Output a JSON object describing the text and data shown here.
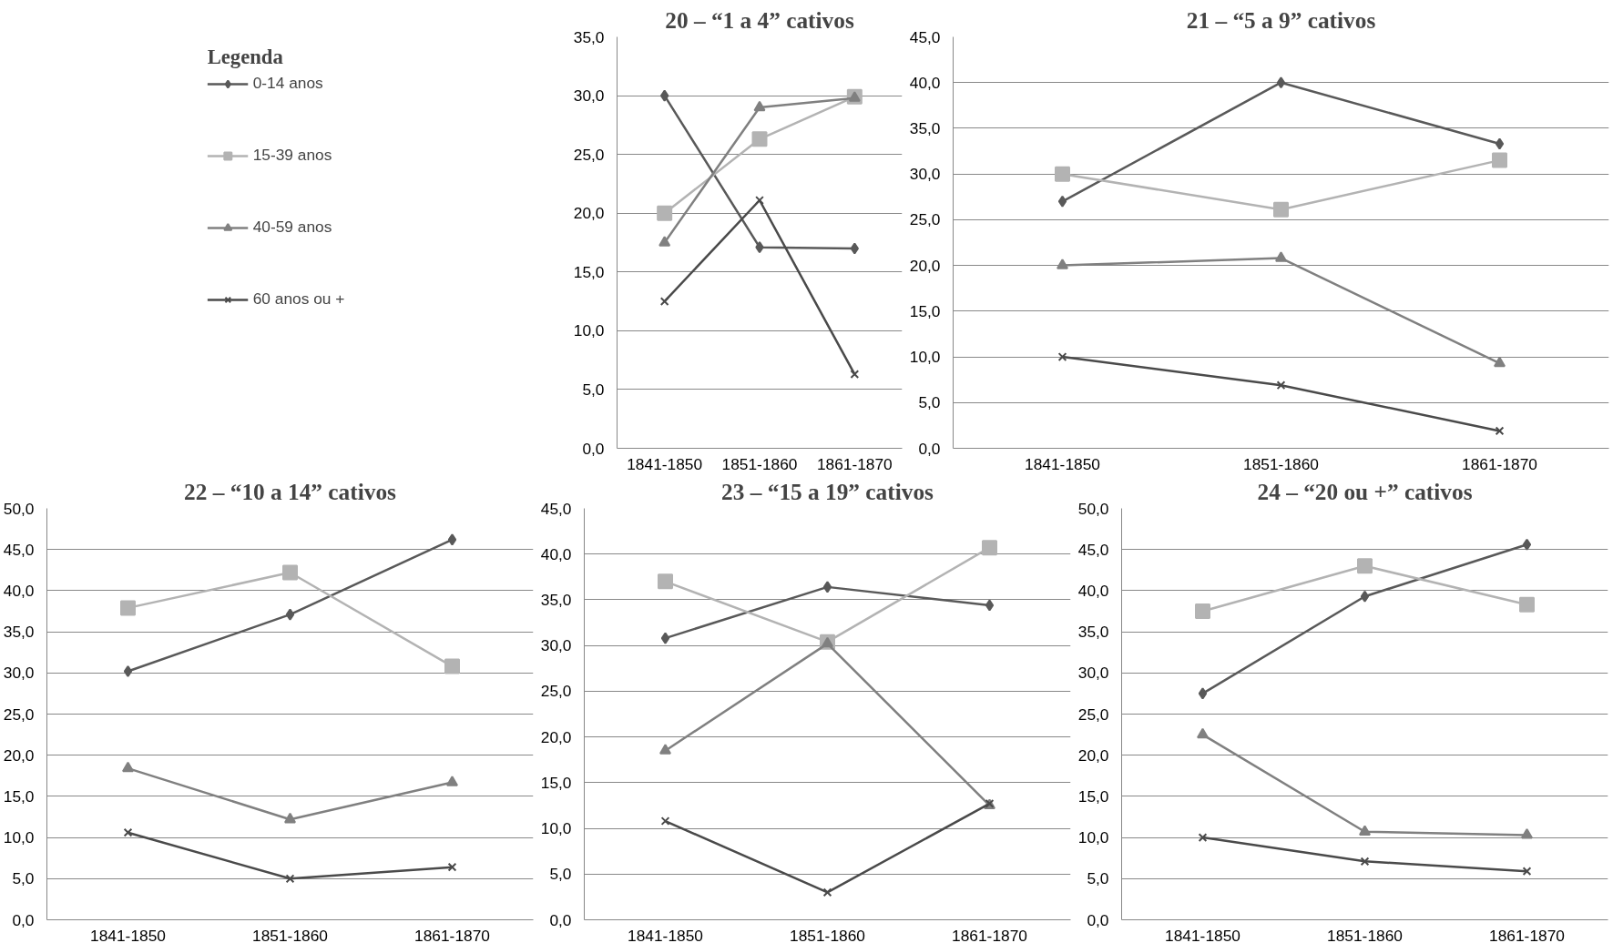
{
  "chart_data": [
    {
      "type": "line",
      "title": "20 – “1 a 4” cativos",
      "categories": [
        "1841-1850",
        "1851-1860",
        "1861-1870"
      ],
      "ylim": [
        0,
        35
      ],
      "yticks": [
        {
          "value": 0,
          "label": "0,0"
        },
        {
          "value": 5,
          "label": "5,0"
        },
        {
          "value": 10,
          "label": "10,0"
        },
        {
          "value": 15,
          "label": "15,0"
        },
        {
          "value": 20,
          "label": "20,0"
        },
        {
          "value": 25,
          "label": "25,0"
        },
        {
          "value": 30,
          "label": "30,0"
        },
        {
          "value": 35,
          "label": "35,0"
        }
      ],
      "grid": "y",
      "legend": "left",
      "legend_title": "Legenda",
      "series": [
        {
          "name": "0-14 anos",
          "color": "#595959",
          "marker": "diamond",
          "values": [
            30.0,
            17.1,
            17.0
          ]
        },
        {
          "name": "15-39 anos",
          "color": "#b3b3b3",
          "marker": "square",
          "values": [
            20.0,
            26.3,
            29.9
          ]
        },
        {
          "name": "40-59 anos",
          "color": "#808080",
          "marker": "triangle",
          "values": [
            17.5,
            29.0,
            29.8
          ]
        },
        {
          "name": "60 anos ou +",
          "color": "#4a4a4a",
          "marker": "cross",
          "values": [
            12.5,
            21.1,
            6.3
          ]
        }
      ]
    },
    {
      "type": "line",
      "title": "21 – “5 a 9” cativos",
      "categories": [
        "1841-1850",
        "1851-1860",
        "1861-1870"
      ],
      "ylim": [
        0,
        45
      ],
      "yticks": [
        {
          "value": 0,
          "label": "0,0"
        },
        {
          "value": 5,
          "label": "5,0"
        },
        {
          "value": 10,
          "label": "10,0"
        },
        {
          "value": 15,
          "label": "15,0"
        },
        {
          "value": 20,
          "label": "20,0"
        },
        {
          "value": 25,
          "label": "25,0"
        },
        {
          "value": 30,
          "label": "30,0"
        },
        {
          "value": 35,
          "label": "35,0"
        },
        {
          "value": 40,
          "label": "40,0"
        },
        {
          "value": 45,
          "label": "45,0"
        }
      ],
      "grid": "y",
      "series": [
        {
          "color": "#595959",
          "marker": "diamond",
          "values": [
            27.0,
            40.0,
            33.3
          ]
        },
        {
          "color": "#b3b3b3",
          "marker": "square",
          "values": [
            30.0,
            26.1,
            31.5
          ]
        },
        {
          "color": "#808080",
          "marker": "triangle",
          "values": [
            20.0,
            20.8,
            9.3
          ]
        },
        {
          "color": "#4a4a4a",
          "marker": "cross",
          "values": [
            10.0,
            6.9,
            1.9
          ]
        }
      ]
    },
    {
      "type": "line",
      "title": "22 – “10 a 14” cativos",
      "categories": [
        "1841-1850",
        "1851-1860",
        "1861-1870"
      ],
      "ylim": [
        0,
        50
      ],
      "yticks": [
        {
          "value": 0,
          "label": "0,0"
        },
        {
          "value": 5,
          "label": "5,0"
        },
        {
          "value": 10,
          "label": "10,0"
        },
        {
          "value": 15,
          "label": "15,0"
        },
        {
          "value": 20,
          "label": "20,0"
        },
        {
          "value": 25,
          "label": "25,0"
        },
        {
          "value": 30,
          "label": "30,0"
        },
        {
          "value": 35,
          "label": "35,0"
        },
        {
          "value": 40,
          "label": "40,0"
        },
        {
          "value": 45,
          "label": "45,0"
        },
        {
          "value": 50,
          "label": "50,0"
        }
      ],
      "grid": "y",
      "series": [
        {
          "color": "#595959",
          "marker": "diamond",
          "values": [
            30.2,
            37.1,
            46.2
          ]
        },
        {
          "color": "#b3b3b3",
          "marker": "square",
          "values": [
            37.9,
            42.2,
            30.8
          ]
        },
        {
          "color": "#808080",
          "marker": "triangle",
          "values": [
            18.4,
            12.2,
            16.7
          ]
        },
        {
          "color": "#4a4a4a",
          "marker": "cross",
          "values": [
            10.6,
            5.0,
            6.4
          ]
        }
      ]
    },
    {
      "type": "line",
      "title": "23 – “15 a 19” cativos",
      "categories": [
        "1841-1850",
        "1851-1860",
        "1861-1870"
      ],
      "ylim": [
        0,
        45
      ],
      "yticks": [
        {
          "value": 0,
          "label": "0,0"
        },
        {
          "value": 5,
          "label": "5,0"
        },
        {
          "value": 10,
          "label": "10,0"
        },
        {
          "value": 15,
          "label": "15,0"
        },
        {
          "value": 20,
          "label": "20,0"
        },
        {
          "value": 25,
          "label": "25,0"
        },
        {
          "value": 30,
          "label": "30,0"
        },
        {
          "value": 35,
          "label": "35,0"
        },
        {
          "value": 40,
          "label": "40,0"
        },
        {
          "value": 45,
          "label": "45,0"
        }
      ],
      "grid": "y",
      "series": [
        {
          "color": "#595959",
          "marker": "diamond",
          "values": [
            30.8,
            36.4,
            34.4
          ]
        },
        {
          "color": "#b3b3b3",
          "marker": "square",
          "values": [
            37.0,
            30.4,
            40.7
          ]
        },
        {
          "color": "#808080",
          "marker": "triangle",
          "values": [
            18.5,
            30.2,
            12.5
          ]
        },
        {
          "color": "#4a4a4a",
          "marker": "cross",
          "values": [
            10.8,
            3.0,
            12.7
          ]
        }
      ]
    },
    {
      "type": "line",
      "title": "24 – “20 ou +” cativos",
      "categories": [
        "1841-1850",
        "1851-1860",
        "1861-1870"
      ],
      "ylim": [
        0,
        50
      ],
      "yticks": [
        {
          "value": 0,
          "label": "0,0"
        },
        {
          "value": 5,
          "label": "5,0"
        },
        {
          "value": 10,
          "label": "10,0"
        },
        {
          "value": 15,
          "label": "15,0"
        },
        {
          "value": 20,
          "label": "20,0"
        },
        {
          "value": 25,
          "label": "25,0"
        },
        {
          "value": 30,
          "label": "30,0"
        },
        {
          "value": 35,
          "label": "35,0"
        },
        {
          "value": 40,
          "label": "40,0"
        },
        {
          "value": 45,
          "label": "45,0"
        },
        {
          "value": 50,
          "label": "50,0"
        }
      ],
      "grid": "y",
      "series": [
        {
          "color": "#595959",
          "marker": "diamond",
          "values": [
            27.5,
            39.3,
            45.6
          ]
        },
        {
          "color": "#b3b3b3",
          "marker": "square",
          "values": [
            37.5,
            43.0,
            38.3
          ]
        },
        {
          "color": "#808080",
          "marker": "triangle",
          "values": [
            22.5,
            10.7,
            10.3
          ]
        },
        {
          "color": "#4a4a4a",
          "marker": "cross",
          "values": [
            10.0,
            7.1,
            5.9
          ]
        }
      ]
    }
  ]
}
